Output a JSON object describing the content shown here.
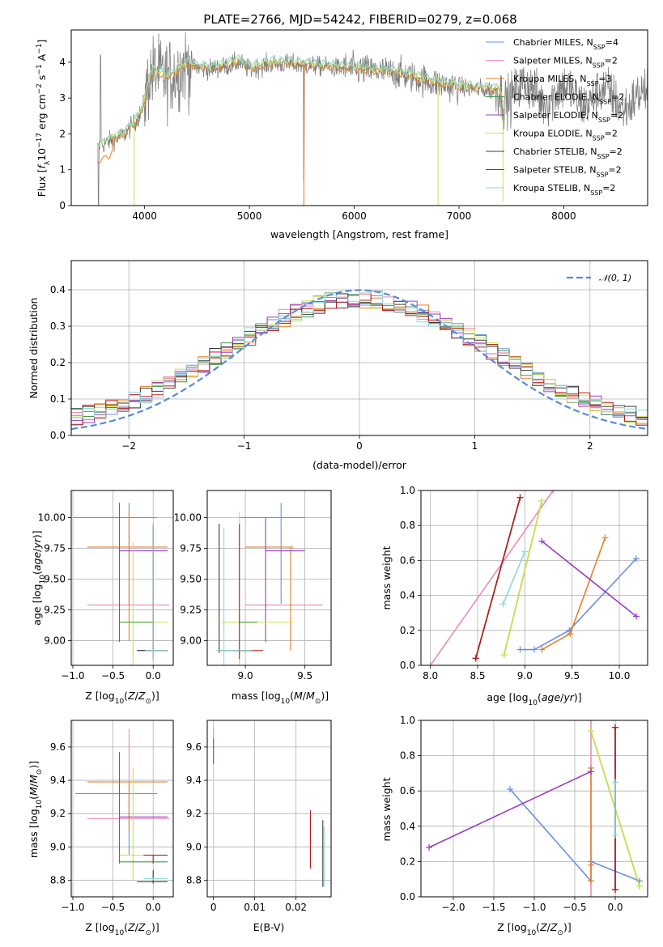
{
  "title": "PLATE=2766, MJD=54242, FIBERID=0279, z=0.068",
  "colors": {
    "chabrier_miles": "#6a8fe0",
    "salpeter_miles": "#e98bbd",
    "kroupa_miles": "#e5802a",
    "chabrier_elodie": "#3c9a4a",
    "salpeter_elodie": "#9a3cbf",
    "kroupa_elodie": "#cde34a",
    "chabrier_stelib": "#3b3b3b",
    "salpeter_stelib": "#b51e1e",
    "kroupa_stelib": "#8bd8dc",
    "data": "#7f7f7f",
    "normal": "#5b8ad6"
  },
  "legend_spectrum": [
    {
      "label": "Chabrier MILES, N",
      "sub": "SSP",
      "tail": "=4",
      "color": "#6a8fe0"
    },
    {
      "label": "Salpeter MILES, N",
      "sub": "SSP",
      "tail": "=2",
      "color": "#e98bbd"
    },
    {
      "label": "Kroupa MILES, N",
      "sub": "SSP",
      "tail": "=3",
      "color": "#e5802a"
    },
    {
      "label": "Chabrier ELODIE, N",
      "sub": "SSP",
      "tail": "=2",
      "color": "#3c9a4a"
    },
    {
      "label": "Salpeter ELODIE, N",
      "sub": "SSP",
      "tail": "=2",
      "color": "#9a3cbf"
    },
    {
      "label": "Kroupa ELODIE, N",
      "sub": "SSP",
      "tail": "=2",
      "color": "#cde34a"
    },
    {
      "label": "Chabrier STELIB, N",
      "sub": "SSP",
      "tail": "=2",
      "color": "#3b3b3b"
    },
    {
      "label": "Salpeter STELIB, N",
      "sub": "SSP",
      "tail": "=2",
      "color": "#b51e1e"
    },
    {
      "label": "Kroupa STELIB, N",
      "sub": "SSP",
      "tail": "=2",
      "color": "#8bd8dc"
    }
  ],
  "legend_hist": "𝒩(0, 1)",
  "chart_data": [
    {
      "id": "spectrum",
      "type": "line",
      "xlabel": "wavelength [Angstrom, rest frame]",
      "ylabel": "Flux [f_λ 10^-17 erg cm^-2 s^-1 A^-1]",
      "xlim": [
        3300,
        8800
      ],
      "ylim": [
        0,
        4.9
      ],
      "xticks": [
        4000,
        5000,
        6000,
        7000,
        8000
      ],
      "yticks": [
        0,
        1,
        2,
        3,
        4
      ],
      "model_curve": {
        "x": [
          3550,
          3600,
          3700,
          3800,
          3900,
          3950,
          4000,
          4050,
          4100,
          4200,
          4300,
          4400,
          4500,
          4600,
          4700,
          4800,
          4900,
          5000,
          5200,
          5400,
          5600,
          5800,
          6000,
          6200,
          6400,
          6600,
          6800,
          7000,
          7200,
          7400
        ],
        "y": [
          1.6,
          1.7,
          1.85,
          1.95,
          2.3,
          2.5,
          2.9,
          3.6,
          3.75,
          3.55,
          3.7,
          3.95,
          3.85,
          3.8,
          3.85,
          3.9,
          4.0,
          3.8,
          3.95,
          3.95,
          3.9,
          3.85,
          3.8,
          3.75,
          3.7,
          3.55,
          3.4,
          3.3,
          3.25,
          3.2
        ]
      },
      "data_extent": [
        3550,
        8800
      ]
    },
    {
      "id": "residual_hist",
      "type": "histogram",
      "xlabel": "(data-model)/error",
      "ylabel": "Normed distribution",
      "xlim": [
        -2.5,
        2.5
      ],
      "ylim": [
        0,
        0.48
      ],
      "xticks": [
        -2,
        -1,
        0,
        1,
        2
      ],
      "yticks": [
        0.0,
        0.1,
        0.2,
        0.3,
        0.4
      ],
      "reference": "normal(0,1)"
    },
    {
      "id": "age_vs_Z",
      "type": "errorbar",
      "xlabel": "Z [log10(Z/Z⊙)]",
      "ylabel": "age [log10(age/yr)]",
      "xlim": [
        -1.02,
        0.25
      ],
      "ylim": [
        8.8,
        10.22
      ],
      "xticks": [
        -1.0,
        -0.5,
        0.0
      ],
      "yticks": [
        9.0,
        9.25,
        9.5,
        9.75,
        10.0
      ]
    },
    {
      "id": "age_vs_mass",
      "type": "errorbar",
      "xlabel": "mass [log10(M/M⊙)]",
      "xlim": [
        8.68,
        9.72
      ],
      "ylim": [
        8.8,
        10.22
      ],
      "xticks": [
        9.0,
        9.5
      ],
      "yticks": [
        9.0,
        9.25,
        9.5,
        9.75,
        10.0
      ]
    },
    {
      "id": "massweight_vs_age",
      "type": "line",
      "xlabel": "age [log10(age/yr)]",
      "ylabel": "mass weight",
      "xlim": [
        7.9,
        10.3
      ],
      "ylim": [
        0,
        1
      ],
      "xticks": [
        8.0,
        8.5,
        9.0,
        9.5,
        10.0
      ],
      "yticks": [
        0.0,
        0.2,
        0.4,
        0.6,
        0.8,
        1.0
      ],
      "series": [
        {
          "key": "chabrier_miles",
          "x": [
            8.95,
            9.1,
            9.47,
            10.18
          ],
          "y": [
            0.09,
            0.09,
            0.2,
            0.61
          ]
        },
        {
          "key": "salpeter_miles",
          "x": [
            8.0,
            9.3
          ],
          "y": [
            0.0,
            1.0
          ]
        },
        {
          "key": "kroupa_miles",
          "x": [
            9.18,
            9.48,
            9.85
          ],
          "y": [
            0.09,
            0.18,
            0.73
          ]
        },
        {
          "key": "chabrier_elodie",
          "x": [
            8.78,
            9.18
          ],
          "y": [
            0.06,
            0.94
          ]
        },
        {
          "key": "salpeter_elodie",
          "x": [
            9.18,
            10.18
          ],
          "y": [
            0.71,
            0.28
          ]
        },
        {
          "key": "kroupa_elodie",
          "x": [
            8.78,
            9.18
          ],
          "y": [
            0.06,
            0.94
          ]
        },
        {
          "key": "chabrier_stelib",
          "x": [
            8.48,
            8.95
          ],
          "y": [
            0.04,
            0.96
          ]
        },
        {
          "key": "salpeter_stelib",
          "x": [
            8.48,
            8.95
          ],
          "y": [
            0.04,
            0.96
          ]
        },
        {
          "key": "kroupa_stelib",
          "x": [
            8.77,
            9.0
          ],
          "y": [
            0.35,
            0.65
          ]
        }
      ]
    },
    {
      "id": "mass_vs_Z",
      "type": "errorbar",
      "xlabel": "Z [log10(Z/Z⊙)]",
      "ylabel": "mass [log10(M/M⊙)]",
      "xlim": [
        -1.02,
        0.25
      ],
      "ylim": [
        8.7,
        9.76
      ],
      "xticks": [
        -1.0,
        -0.5,
        0.0
      ],
      "yticks": [
        8.8,
        9.0,
        9.2,
        9.4,
        9.6
      ]
    },
    {
      "id": "mass_vs_ebv",
      "type": "errorbar",
      "xlabel": "E(B-V)",
      "xlim": [
        -0.0015,
        0.0285
      ],
      "ylim": [
        8.7,
        9.76
      ],
      "xticks": [
        0.0,
        0.01,
        0.02
      ],
      "yticks": [
        8.8,
        9.0,
        9.2,
        9.4,
        9.6
      ]
    },
    {
      "id": "massweight_vs_Z",
      "type": "line",
      "xlabel": "Z [log10(Z/Z⊙)]",
      "ylabel": "mass weight",
      "xlim": [
        -2.4,
        0.4
      ],
      "ylim": [
        0,
        1
      ],
      "xticks": [
        -2.0,
        -1.5,
        -1.0,
        -0.5,
        0.0
      ],
      "yticks": [
        0.0,
        0.2,
        0.4,
        0.6,
        0.8,
        1.0
      ],
      "series": [
        {
          "key": "chabrier_miles",
          "x": [
            -1.3,
            -0.3,
            -0.3,
            0.3
          ],
          "y": [
            0.61,
            0.09,
            0.2,
            0.09
          ]
        },
        {
          "key": "salpeter_miles",
          "x": [
            -0.3,
            -0.3
          ],
          "y": [
            0.0,
            1.0
          ]
        },
        {
          "key": "kroupa_miles",
          "x": [
            -0.3,
            -0.3,
            -0.3
          ],
          "y": [
            0.09,
            0.18,
            0.73
          ]
        },
        {
          "key": "chabrier_elodie",
          "x": [
            -0.3,
            0.3
          ],
          "y": [
            0.94,
            0.06
          ]
        },
        {
          "key": "salpeter_elodie",
          "x": [
            -2.3,
            -0.3
          ],
          "y": [
            0.28,
            0.71
          ]
        },
        {
          "key": "kroupa_elodie",
          "x": [
            -0.3,
            0.3
          ],
          "y": [
            0.94,
            0.06
          ]
        },
        {
          "key": "chabrier_stelib",
          "x": [
            0.0,
            0.0
          ],
          "y": [
            0.04,
            0.96
          ]
        },
        {
          "key": "salpeter_stelib",
          "x": [
            0.0,
            0.0
          ],
          "y": [
            0.04,
            0.96
          ]
        },
        {
          "key": "kroupa_stelib",
          "x": [
            0.0,
            0.0
          ],
          "y": [
            0.35,
            0.65
          ]
        }
      ]
    }
  ]
}
